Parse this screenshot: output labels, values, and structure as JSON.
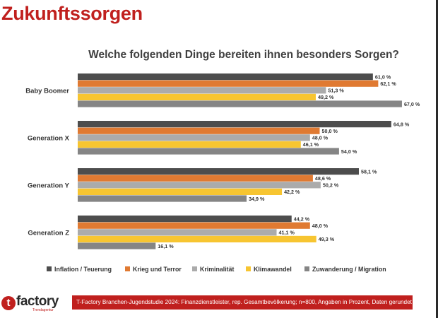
{
  "page_title": "Zukunftssorgen",
  "footer": {
    "logo_letter": "t",
    "logo_name": "factory",
    "logo_sub": "Trendagentur",
    "source": "T-Factory Branchen-Jugendstudie 2024: Finanzdienstleister, rep. Gesamtbevölkerung; n=800, Angaben in Prozent, Daten gerundet"
  },
  "chart_data": {
    "type": "bar",
    "orientation": "horizontal",
    "title": "Welche folgenden Dinge bereiten ihnen besonders Sorgen?",
    "categories": [
      "Baby Boomer",
      "Generation X",
      "Generation Y",
      "Generation Z"
    ],
    "series": [
      {
        "name": "Inflation / Teuerung",
        "color": "#4d4d4d",
        "values": [
          61.0,
          64.8,
          58.1,
          44.2
        ],
        "labels": [
          "61,0 %",
          "64,8 %",
          "58,1 %",
          "44,2 %"
        ]
      },
      {
        "name": "Krieg und Terror",
        "color": "#e07a32",
        "values": [
          62.1,
          50.0,
          48.6,
          48.0
        ],
        "labels": [
          "62,1 %",
          "50,0 %",
          "48,6 %",
          "48,0 %"
        ]
      },
      {
        "name": "Kriminalität",
        "color": "#ababab",
        "values": [
          51.3,
          48.0,
          50.2,
          41.1
        ],
        "labels": [
          "51,3 %",
          "48,0 %",
          "50,2 %",
          "41,1 %"
        ]
      },
      {
        "name": "Klimawandel",
        "color": "#f7c531",
        "values": [
          49.2,
          46.1,
          42.2,
          49.3
        ],
        "labels": [
          "49,2 %",
          "46,1 %",
          "42,2 %",
          "49,3 %"
        ]
      },
      {
        "name": "Zuwanderung / Migration",
        "color": "#858585",
        "values": [
          67.0,
          54.0,
          34.9,
          16.1
        ],
        "labels": [
          "67,0 %",
          "54,0 %",
          "34,9 %",
          "16,1 %"
        ]
      }
    ],
    "xlim": [
      0,
      70
    ],
    "grid": false,
    "legend_position": "bottom"
  }
}
